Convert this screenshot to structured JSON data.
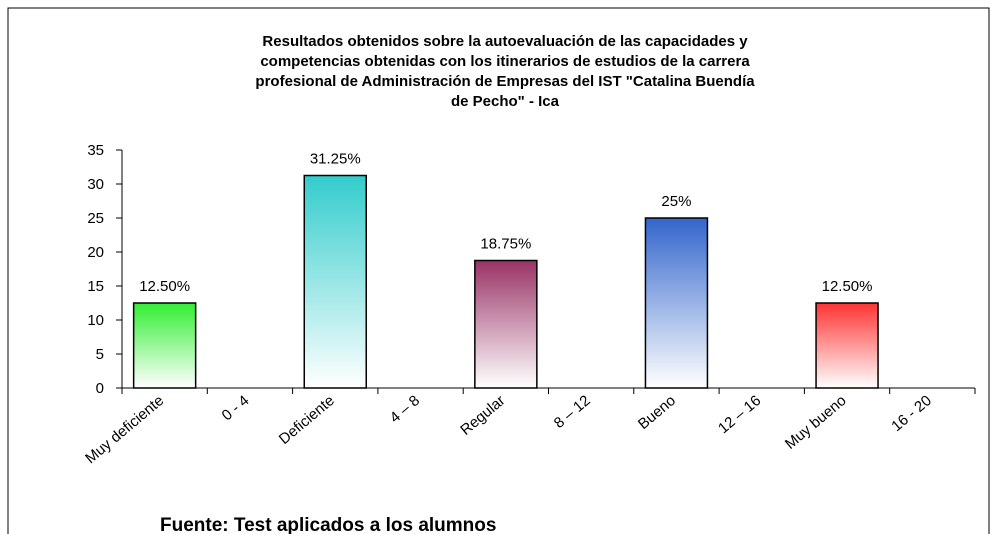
{
  "chart_data": {
    "type": "bar",
    "title": [
      "Resultados obtenidos sobre la autoevaluación de las capacidades y",
      "competencias obtenidas con los itinerarios de estudios de la carrera",
      "profesional de Administración de Empresas del IST \"Catalina Buendía",
      "de Pecho\" - Ica"
    ],
    "categories": [
      "Muy deficiente",
      "0 - 4",
      "Deficiente",
      "4 – 8",
      "Regular",
      "8 – 12",
      "Bueno",
      "12 – 16",
      "Muy bueno",
      "16 - 20"
    ],
    "values": [
      12.5,
      null,
      31.25,
      null,
      18.75,
      null,
      25,
      null,
      12.5,
      null
    ],
    "value_labels": [
      "12.50%",
      null,
      "31.25%",
      null,
      "18.75%",
      null,
      "25%",
      null,
      "12.50%",
      null
    ],
    "colors": [
      "#33ee33",
      null,
      "#33cccc",
      null,
      "#993366",
      null,
      "#3366cc",
      null,
      "#ff3333",
      null
    ],
    "ylim": [
      0,
      35
    ],
    "yticks": [
      0,
      5,
      10,
      15,
      20,
      25,
      30,
      35
    ],
    "grid": false,
    "note": "Fuente: Test aplicados a los alumnos"
  }
}
